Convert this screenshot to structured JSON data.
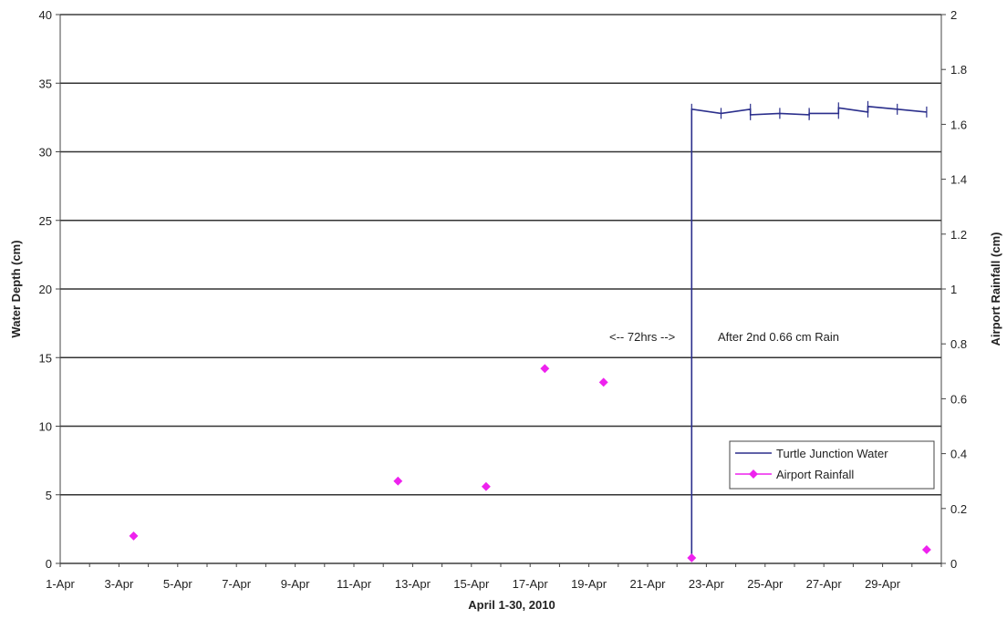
{
  "chart_data": {
    "type": "line",
    "xlabel": "April 1-30, 2010",
    "ylabel_left": "Water Depth (cm)",
    "ylabel_right": "Airport Rainfall (cm)",
    "ylim_left": [
      0,
      40
    ],
    "ylim_right": [
      0,
      2
    ],
    "yticks_left": [
      "0",
      "5",
      "10",
      "15",
      "20",
      "25",
      "30",
      "35",
      "40"
    ],
    "yticks_right": [
      "0",
      "0.2",
      "0.4",
      "0.6",
      "0.8",
      "1",
      "1.2",
      "1.4",
      "1.6",
      "1.8",
      "2"
    ],
    "xlim_days": [
      1,
      31
    ],
    "xticks": [
      "1-Apr",
      "3-Apr",
      "5-Apr",
      "7-Apr",
      "9-Apr",
      "11-Apr",
      "13-Apr",
      "15-Apr",
      "17-Apr",
      "19-Apr",
      "21-Apr",
      "23-Apr",
      "25-Apr",
      "27-Apr",
      "29-Apr"
    ],
    "grid": "horizontal",
    "legend_position": "bottom-right",
    "annotations": [
      "<-- 72hrs -->",
      "After 2nd 0.66 cm Rain"
    ],
    "series": [
      {
        "name": "Turtle Junction Water",
        "axis": "left",
        "color": "#2b2f8c",
        "style": "line",
        "x": [
          22.5,
          22.5,
          23.5,
          24.5,
          24.5,
          25.5,
          26.5,
          26.5,
          27.5,
          27.5,
          28.5,
          28.5,
          29.5,
          30.5
        ],
        "y": [
          0.3,
          33.1,
          32.8,
          33.1,
          32.7,
          32.8,
          32.7,
          32.8,
          32.8,
          33.2,
          32.9,
          33.3,
          33.1,
          32.9
        ]
      },
      {
        "name": "Airport Rainfall",
        "axis": "right",
        "color": "#ee22ee",
        "style": "scatter",
        "x": [
          3.5,
          12.5,
          15.5,
          17.5,
          19.5,
          22.5,
          30.5
        ],
        "y": [
          0.1,
          0.3,
          0.28,
          0.71,
          0.66,
          0.02,
          0.05
        ]
      }
    ]
  }
}
